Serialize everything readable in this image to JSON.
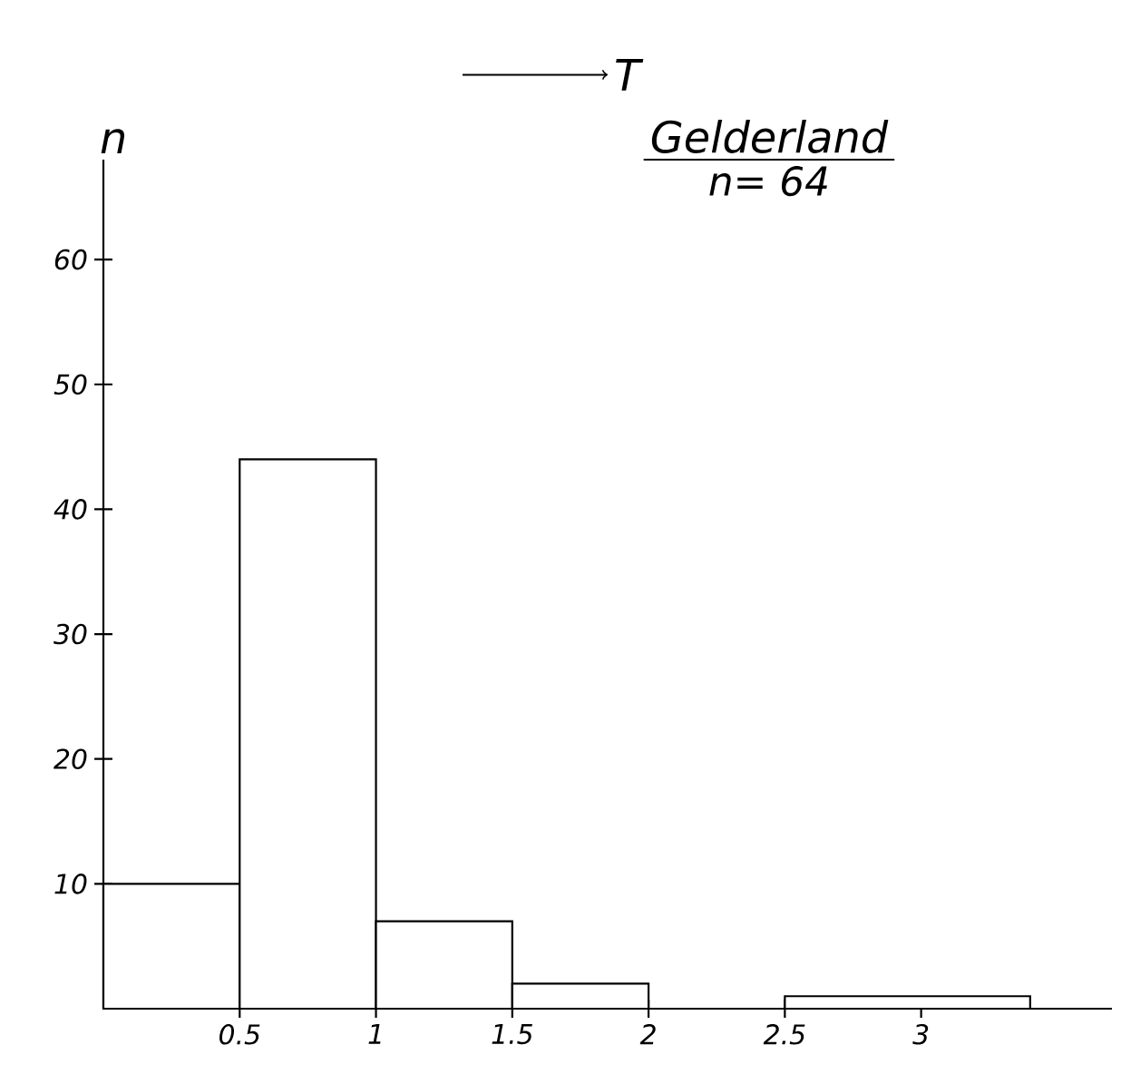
{
  "chart_data": {
    "type": "histogram",
    "title": "Gelderland",
    "subtitle": "n= 64",
    "xlabel": "T",
    "ylabel": "n",
    "bins": [
      0,
      0.5,
      1,
      1.5,
      2,
      2.5,
      3.4
    ],
    "values": [
      10,
      44,
      7,
      2,
      0,
      1
    ],
    "color": "#ffffff",
    "xlim": [
      0,
      3.7
    ],
    "ylim": [
      0,
      68
    ],
    "xticks": [
      0.5,
      1,
      1.5,
      2,
      2.5,
      3
    ],
    "yticks": [
      10,
      20,
      30,
      40,
      50,
      60
    ],
    "grid": false
  }
}
